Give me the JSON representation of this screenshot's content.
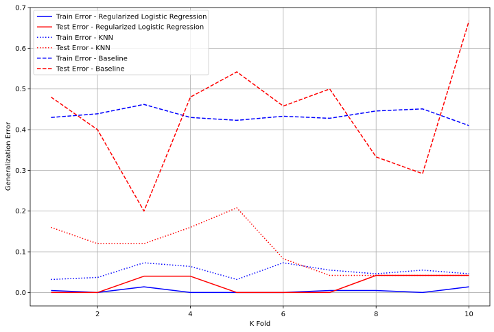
{
  "chart_data": {
    "type": "line",
    "xlabel": "K Fold",
    "ylabel": "Generalization Error",
    "xlim": [
      0.55,
      10.45
    ],
    "ylim": [
      -0.033,
      0.7
    ],
    "xticks": [
      2,
      4,
      6,
      8,
      10
    ],
    "yticks": [
      0.0,
      0.1,
      0.2,
      0.3,
      0.4,
      0.5,
      0.6,
      0.7
    ],
    "ytick_labels": [
      "0.0",
      "0.1",
      "0.2",
      "0.3",
      "0.4",
      "0.5",
      "0.6",
      "0.7"
    ],
    "grid": true,
    "legend_position": "top-left",
    "x": [
      1,
      2,
      3,
      4,
      5,
      6,
      7,
      8,
      9,
      10
    ],
    "series": [
      {
        "name": "Train Error - Regularized Logistic Regression",
        "color": "#0000ff",
        "dash": "solid",
        "values": [
          0.005,
          0.0,
          0.014,
          0.0,
          0.0,
          0.0,
          0.005,
          0.005,
          0.0,
          0.014
        ]
      },
      {
        "name": "Test Error - Regularized Logistic Regression",
        "color": "#ff0000",
        "dash": "solid",
        "values": [
          0.0,
          0.0,
          0.04,
          0.04,
          0.0,
          0.0,
          0.0,
          0.042,
          0.042,
          0.042
        ]
      },
      {
        "name": "Train Error - KNN",
        "color": "#0000ff",
        "dash": "dotted",
        "values": [
          0.032,
          0.037,
          0.073,
          0.064,
          0.032,
          0.073,
          0.055,
          0.046,
          0.055,
          0.046
        ]
      },
      {
        "name": "Test Error - KNN",
        "color": "#ff0000",
        "dash": "dotted",
        "values": [
          0.16,
          0.12,
          0.12,
          0.16,
          0.208,
          0.083,
          0.042,
          0.042,
          0.042,
          0.042
        ]
      },
      {
        "name": "Train Error - Baseline",
        "color": "#0000ff",
        "dash": "dashed",
        "values": [
          0.43,
          0.439,
          0.462,
          0.43,
          0.423,
          0.433,
          0.428,
          0.446,
          0.451,
          0.41
        ]
      },
      {
        "name": "Test Error - Baseline",
        "color": "#ff0000",
        "dash": "dashed",
        "values": [
          0.48,
          0.4,
          0.2,
          0.48,
          0.542,
          0.458,
          0.5,
          0.333,
          0.292,
          0.667
        ]
      }
    ]
  }
}
